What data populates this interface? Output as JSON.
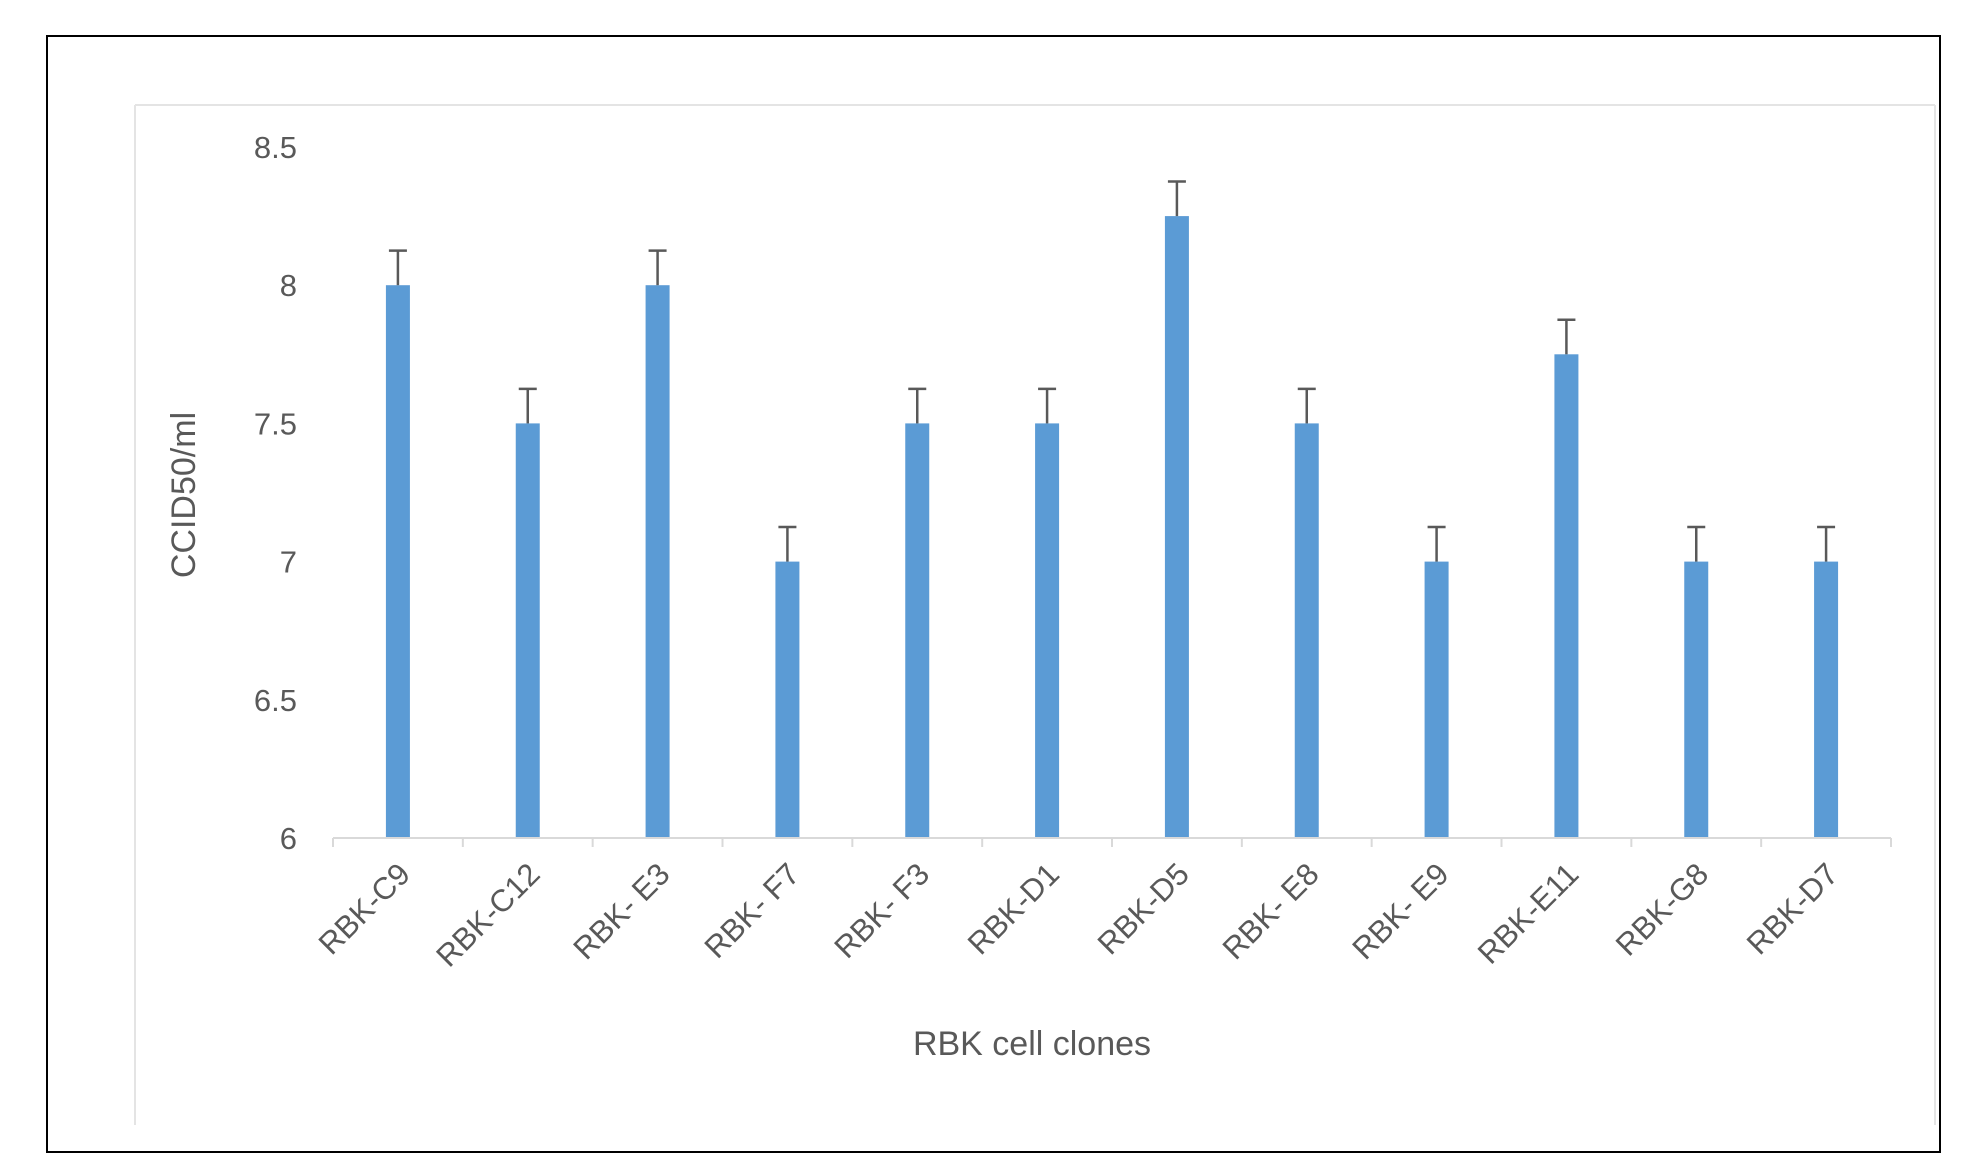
{
  "chart_data": {
    "type": "bar",
    "title": "",
    "xlabel": "RBK cell clones",
    "ylabel": "CCID50/ml",
    "categories": [
      "RBK-C9",
      "RBK-C12",
      "RBK- E3",
      "RBK- F7",
      "RBK- F3",
      "RBK-D1",
      "RBK-D5",
      "RBK-  E8",
      "RBK- E9",
      "RBK-E11",
      "RBK-G8",
      "RBK-D7"
    ],
    "series": [
      {
        "values": [
          8.0,
          7.5,
          8.0,
          7.0,
          7.5,
          7.5,
          8.25,
          7.5,
          7.0,
          7.75,
          7.0,
          7.0
        ],
        "error": [
          0.125,
          0.125,
          0.125,
          0.125,
          0.125,
          0.125,
          0.125,
          0.125,
          0.125,
          0.125,
          0.125,
          0.125
        ]
      }
    ],
    "ylim": [
      6,
      8.5
    ],
    "yticks": [
      "6",
      "6.5",
      "7",
      "7.5",
      "8",
      "8.5"
    ],
    "grid": false,
    "legend": "none",
    "colors": {
      "bar": "#5b9bd5",
      "error_bar": "#595959",
      "axis": "#d9d9d9",
      "text": "#595959"
    }
  }
}
